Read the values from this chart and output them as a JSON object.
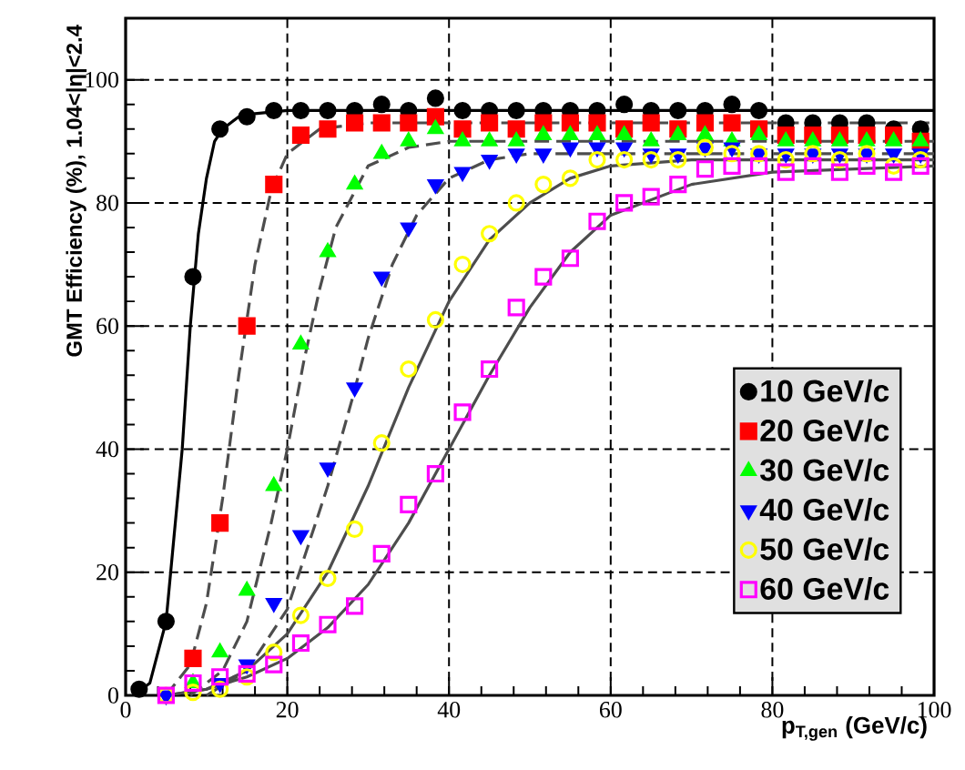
{
  "chart_data": {
    "type": "scatter",
    "xlabel": "p$_{T,gen}$ (GeV/c)",
    "ylabel": "GMT Efficiency (%), 1.04<|η|<2.4",
    "x": [
      1.67,
      5,
      8.33,
      11.67,
      15,
      18.33,
      21.67,
      25,
      28.33,
      31.67,
      35,
      38.33,
      41.67,
      45,
      48.33,
      51.67,
      55,
      58.33,
      61.67,
      65,
      68.33,
      71.67,
      75,
      78.33,
      81.67,
      85,
      88.33,
      91.67,
      95,
      98.33
    ],
    "xlim": [
      0,
      100
    ],
    "xticks": [
      0,
      20,
      40,
      60,
      80,
      100
    ],
    "ylim": [
      0,
      110
    ],
    "yticks": [
      0,
      20,
      40,
      60,
      80,
      100
    ],
    "grid": true,
    "legend": "bottom right",
    "series": [
      {
        "name": "10 GeV/c",
        "color": "#000000",
        "marker": "circle",
        "values": [
          1,
          12,
          68,
          92,
          94,
          95,
          95,
          95,
          95,
          96,
          95,
          97,
          95,
          95,
          95,
          95,
          95,
          95,
          96,
          95,
          95,
          95,
          96,
          95,
          93,
          93,
          93,
          93,
          92,
          92
        ]
      },
      {
        "name": "20 GeV/c",
        "color": "#ff0000",
        "marker": "square",
        "values": [
          null,
          null,
          6,
          28,
          60,
          83,
          91,
          92,
          93,
          93,
          93,
          94,
          92,
          93,
          92,
          93,
          93,
          93,
          92,
          93,
          92,
          93,
          93,
          92,
          91,
          91,
          91,
          91,
          91,
          90
        ]
      },
      {
        "name": "30 GeV/c",
        "color": "#00ff00",
        "marker": "triangle",
        "values": [
          null,
          null,
          2,
          7,
          17,
          34,
          57,
          72,
          83,
          88,
          90,
          92,
          90,
          90,
          90,
          91,
          91,
          91,
          91,
          90,
          91,
          91,
          90,
          91,
          90,
          90,
          90,
          90,
          90,
          90
        ]
      },
      {
        "name": "40 GeV/c",
        "color": "#0000ff",
        "marker": "triangle-down",
        "values": [
          null,
          0,
          null,
          2,
          5,
          15,
          26,
          37,
          50,
          68,
          76,
          83,
          85,
          87,
          88,
          88,
          89,
          89,
          89,
          88,
          88,
          89,
          89,
          88,
          88,
          88,
          88,
          88,
          88,
          88
        ]
      },
      {
        "name": "50 GeV/c",
        "color": "#ffff00",
        "marker": "circle-open",
        "values": [
          null,
          0,
          0.5,
          1,
          3,
          7,
          13,
          19,
          27,
          41,
          53,
          61,
          70,
          75,
          80,
          83,
          84,
          87,
          87,
          87,
          87,
          89,
          88,
          88,
          87,
          88,
          87,
          88,
          86,
          87
        ]
      },
      {
        "name": "60 GeV/c",
        "color": "#ff00ff",
        "marker": "square-open",
        "values": [
          null,
          0,
          2,
          3,
          3.5,
          5,
          8.5,
          11.5,
          14.5,
          23,
          31,
          36,
          46,
          53,
          63,
          68,
          71,
          77,
          80,
          81,
          83,
          85.5,
          86,
          86,
          85,
          86,
          85,
          86,
          85,
          86
        ]
      },
      {
        "type": "line",
        "color": "#000000",
        "line_style": "solid",
        "x": [
          1,
          3,
          5,
          7,
          8,
          9,
          10,
          11,
          12,
          14,
          16,
          20,
          100
        ],
        "values": [
          0,
          2,
          12,
          40,
          60,
          75,
          84,
          90,
          92,
          94,
          94.5,
          95,
          95
        ]
      },
      {
        "type": "line",
        "color": "#4d4d4d",
        "line_style": "dashed",
        "x": [
          5,
          8,
          10,
          12,
          14,
          16,
          18,
          20,
          24,
          30,
          100
        ],
        "values": [
          0,
          5,
          15,
          32,
          52,
          70,
          82,
          88,
          92,
          93,
          93
        ]
      },
      {
        "type": "line",
        "color": "#4d4d4d",
        "line_style": "dashed",
        "x": [
          8,
          12,
          15,
          18,
          20,
          22,
          24,
          26,
          30,
          35,
          40,
          100
        ],
        "values": [
          0,
          4,
          12,
          28,
          40,
          54,
          66,
          76,
          86,
          89,
          90,
          90
        ]
      },
      {
        "type": "line",
        "color": "#4d4d4d",
        "line_style": "dashed",
        "x": [
          10,
          15,
          20,
          25,
          28,
          30,
          33,
          36,
          40,
          45,
          50,
          100
        ],
        "values": [
          0,
          4,
          14,
          34,
          48,
          58,
          70,
          78,
          84,
          87,
          88,
          88
        ]
      },
      {
        "type": "line",
        "color": "#4d4d4d",
        "line_style": "solid",
        "x": [
          5,
          10,
          15,
          20,
          25,
          30,
          35,
          40,
          45,
          50,
          55,
          60,
          70,
          100
        ],
        "values": [
          0,
          1,
          4,
          10,
          20,
          34,
          50,
          64,
          74,
          80,
          84,
          86,
          87,
          87
        ]
      },
      {
        "type": "line",
        "color": "#4d4d4d",
        "line_style": "solid",
        "x": [
          5,
          10,
          15,
          20,
          25,
          30,
          35,
          40,
          45,
          50,
          55,
          60,
          70,
          80,
          100
        ],
        "values": [
          0,
          1,
          3,
          6,
          11,
          18,
          28,
          40,
          52,
          63,
          72,
          78,
          83,
          85,
          86
        ]
      }
    ]
  }
}
